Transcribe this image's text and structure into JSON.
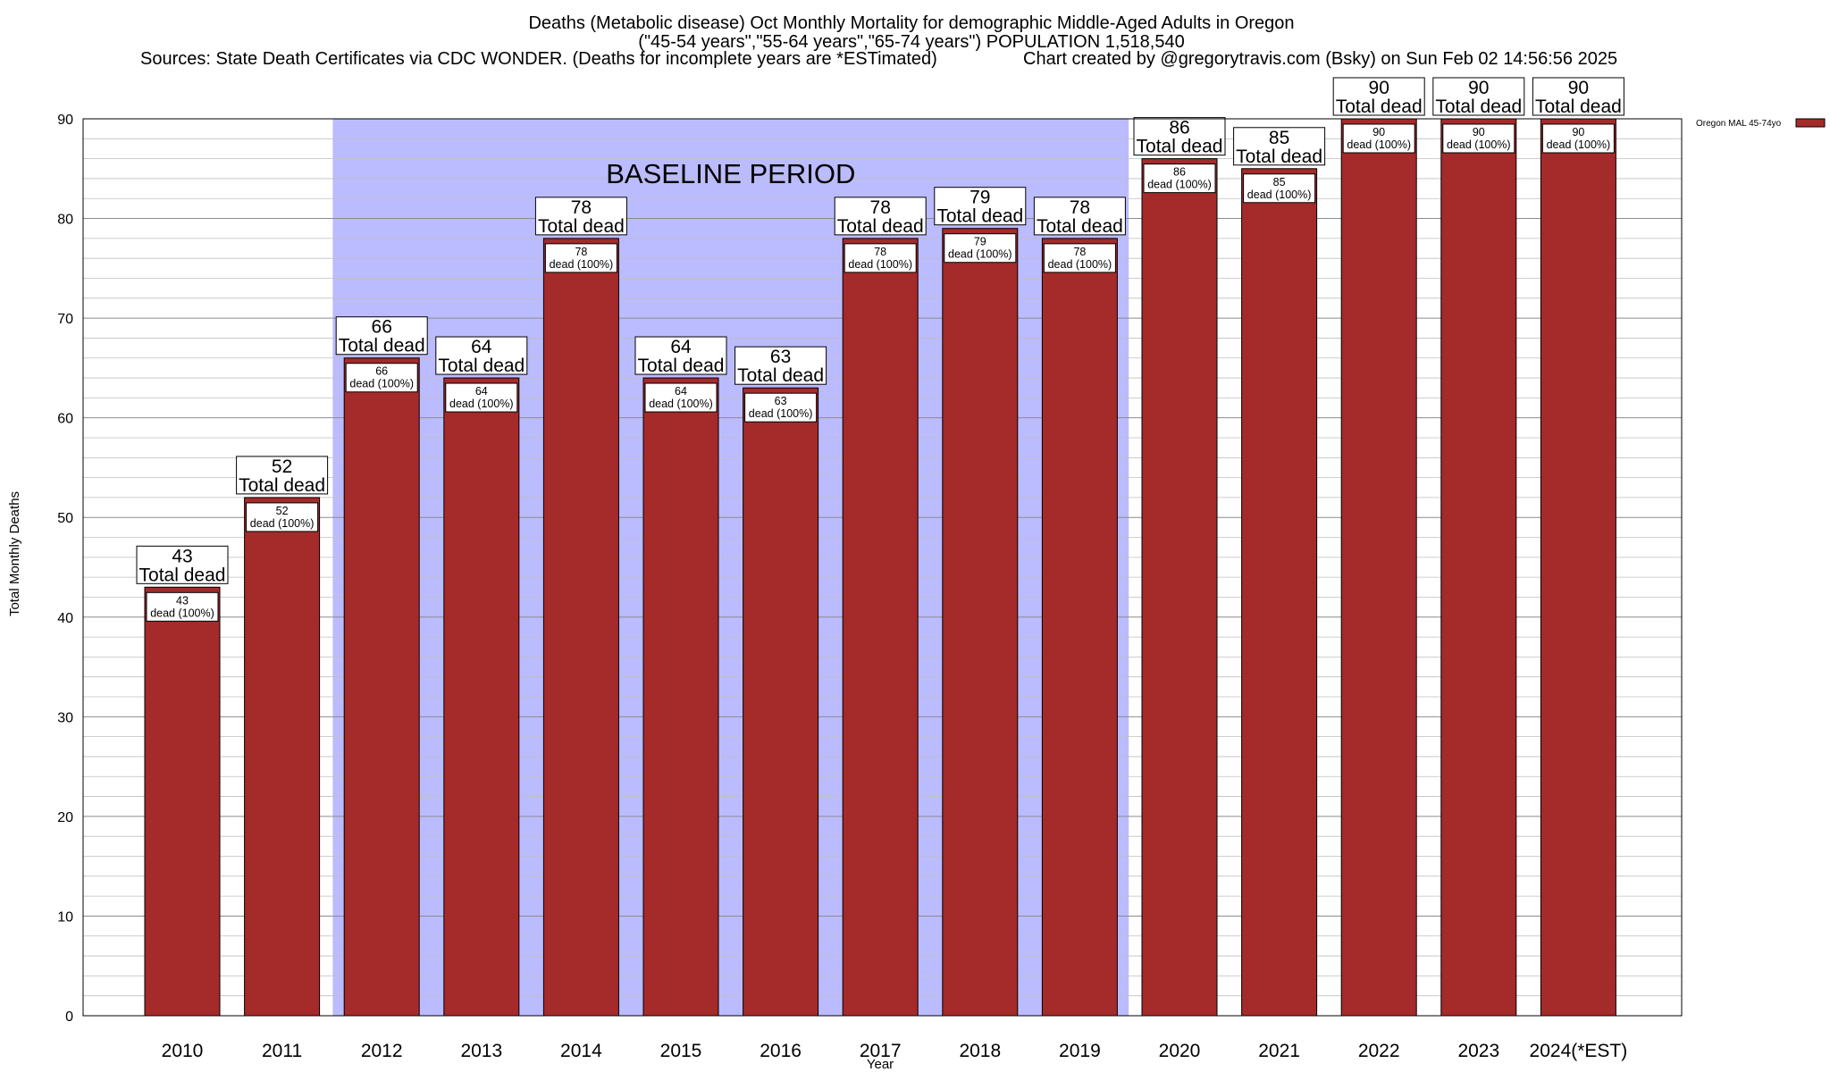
{
  "chart_data": {
    "type": "bar",
    "title_lines": [
      "Deaths (Metabolic disease) Oct Monthly Mortality for demographic Middle-Aged Adults in Oregon",
      "(\"45-54 years\",\"55-64 years\",\"65-74 years\") POPULATION 1,518,540",
      "Sources: State Death Certificates via CDC WONDER. (Deaths for incomplete years are *ESTimated)"
    ],
    "credit": "Chart created by @gregorytravis.com (Bsky) on Sun Feb 02 14:56:56 2025",
    "xlabel": "Year",
    "ylabel": "Total Monthly Deaths",
    "ylim": [
      0,
      90
    ],
    "yticks": [
      0,
      10,
      20,
      30,
      40,
      50,
      60,
      70,
      80,
      90
    ],
    "grid": true,
    "categories": [
      "2010",
      "2011",
      "2012",
      "2013",
      "2014",
      "2015",
      "2016",
      "2017",
      "2018",
      "2019",
      "2020",
      "2021",
      "2022",
      "2023",
      "2024(*EST)"
    ],
    "series": [
      {
        "name": "Oregon MAL 45-74yo",
        "color": "#a52a2a",
        "values": [
          43,
          52,
          66,
          64,
          78,
          64,
          63,
          78,
          79,
          78,
          86,
          85,
          90,
          90,
          90
        ]
      }
    ],
    "top_label_text": "Total dead",
    "inner_label_text": "dead (100%)",
    "baseline": {
      "label": "BASELINE PERIOD",
      "start": "2012",
      "end": "2019",
      "color": "#bbbbff"
    },
    "legend_position": "top-right"
  }
}
